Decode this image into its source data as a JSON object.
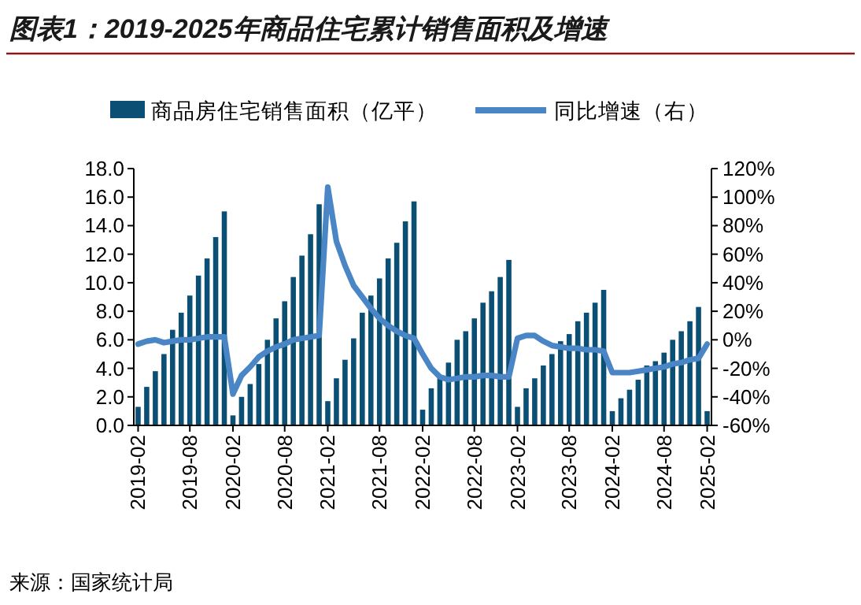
{
  "chart_data": {
    "type": "bar",
    "title": "图表1：2019-2025年商品住宅累计销售面积及增速",
    "categories": [
      "2019-02",
      null,
      null,
      null,
      null,
      null,
      "2019-08",
      null,
      null,
      null,
      null,
      "2020-02",
      null,
      null,
      null,
      null,
      null,
      "2020-08",
      null,
      null,
      null,
      null,
      "2021-02",
      null,
      null,
      null,
      null,
      null,
      "2021-08",
      null,
      null,
      null,
      null,
      "2022-02",
      null,
      null,
      null,
      null,
      null,
      "2022-08",
      null,
      null,
      null,
      null,
      "2023-02",
      null,
      null,
      null,
      null,
      null,
      "2023-08",
      null,
      null,
      null,
      null,
      "2024-02",
      null,
      null,
      null,
      null,
      null,
      "2024-08",
      null,
      null,
      null,
      null,
      "2025-02"
    ],
    "series": [
      {
        "name": "商品房住宅销售面积（亿平）",
        "color": "#0b4f75",
        "values": [
          1.3,
          2.7,
          3.8,
          5.0,
          6.7,
          7.9,
          9.1,
          10.5,
          11.7,
          13.2,
          15.0,
          0.7,
          2.0,
          2.9,
          4.3,
          6.0,
          7.5,
          8.7,
          10.4,
          11.9,
          13.4,
          15.5,
          1.7,
          3.3,
          4.6,
          6.1,
          7.9,
          9.1,
          10.3,
          11.7,
          12.8,
          14.3,
          15.7,
          1.1,
          2.6,
          3.5,
          4.4,
          6.0,
          6.6,
          7.5,
          8.6,
          9.4,
          10.4,
          11.6,
          1.3,
          2.6,
          3.3,
          4.2,
          5.0,
          5.9,
          6.4,
          7.3,
          7.9,
          8.6,
          9.5,
          1.0,
          1.9,
          2.5,
          3.2,
          4.2,
          4.5,
          5.1,
          6.0,
          6.6,
          7.3,
          8.3,
          1.0
        ]
      },
      {
        "name": "同比增速（右）",
        "type": "line",
        "axis": "y2",
        "color": "#4a86c5",
        "values": [
          -3,
          -1,
          0,
          -2,
          -1,
          0,
          0,
          1,
          2,
          2,
          2,
          -38,
          -25,
          -19,
          -12,
          -8,
          -5,
          -3,
          0,
          1,
          2,
          3,
          107,
          69,
          52,
          38,
          30,
          22,
          15,
          10,
          6,
          3,
          1,
          -10,
          -20,
          -26,
          -28,
          -27,
          -26,
          -26,
          -25,
          -25,
          -26,
          -26,
          1,
          3,
          3,
          -1,
          -4,
          -5,
          -6,
          -6,
          -7,
          -7,
          -8,
          -23,
          -23,
          -23,
          -22,
          -21,
          -20,
          -19,
          -17,
          -16,
          -14,
          -13,
          -3
        ]
      }
    ],
    "ylim": [
      0,
      18
    ],
    "yticks": [
      {
        "value": 0,
        "label": "0.0"
      },
      {
        "value": 2,
        "label": "2.0"
      },
      {
        "value": 4,
        "label": "4.0"
      },
      {
        "value": 6,
        "label": "6.0"
      },
      {
        "value": 8,
        "label": "8.0"
      },
      {
        "value": 10,
        "label": "10.0"
      },
      {
        "value": 12,
        "label": "12.0"
      },
      {
        "value": 14,
        "label": "14.0"
      },
      {
        "value": 16,
        "label": "16.0"
      },
      {
        "value": 18,
        "label": "18.0"
      }
    ],
    "y2lim": [
      -60,
      120
    ],
    "y2ticks": [
      {
        "value": -60,
        "label": "-60%"
      },
      {
        "value": -40,
        "label": "-40%"
      },
      {
        "value": -20,
        "label": "-20%"
      },
      {
        "value": 0,
        "label": "0%"
      },
      {
        "value": 20,
        "label": "20%"
      },
      {
        "value": 40,
        "label": "40%"
      },
      {
        "value": 60,
        "label": "60%"
      },
      {
        "value": 80,
        "label": "80%"
      },
      {
        "value": 100,
        "label": "100%"
      },
      {
        "value": 120,
        "label": "120%"
      }
    ],
    "legend": "top",
    "annotations": [
      "来源：国家统计局"
    ]
  }
}
